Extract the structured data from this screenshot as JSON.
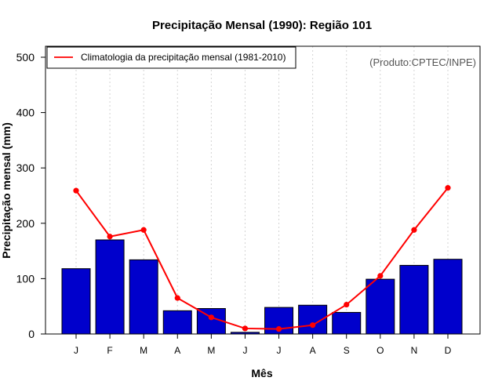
{
  "chart_data": {
    "type": "bar",
    "title": "Precipitação Mensal (1990): Região 101",
    "xlabel": "Mês",
    "ylabel": "Precipitação mensal (mm)",
    "ylim": [
      0,
      500
    ],
    "yticks": [
      0,
      100,
      200,
      300,
      400,
      500
    ],
    "grid": "vertical dotted",
    "legend_position": "top-left",
    "categories": [
      "J",
      "F",
      "M",
      "A",
      "M",
      "J",
      "J",
      "A",
      "S",
      "O",
      "N",
      "D"
    ],
    "series": [
      {
        "name": "Precipitação mensal (1990)",
        "type": "bar",
        "color": "#0000cc",
        "values": [
          118,
          170,
          134,
          42,
          46,
          3,
          48,
          52,
          39,
          99,
          124,
          135
        ]
      },
      {
        "name": "Climatologia da precipitação mensal (1981-2010)",
        "type": "line",
        "color": "#ff0000",
        "values": [
          259,
          176,
          188,
          65,
          30,
          10,
          9,
          16,
          53,
          105,
          188,
          264
        ]
      }
    ],
    "legend_label": "Climatologia da precipitação mensal (1981-2010)",
    "annotation": "(Produto:CPTEC/INPE)"
  }
}
